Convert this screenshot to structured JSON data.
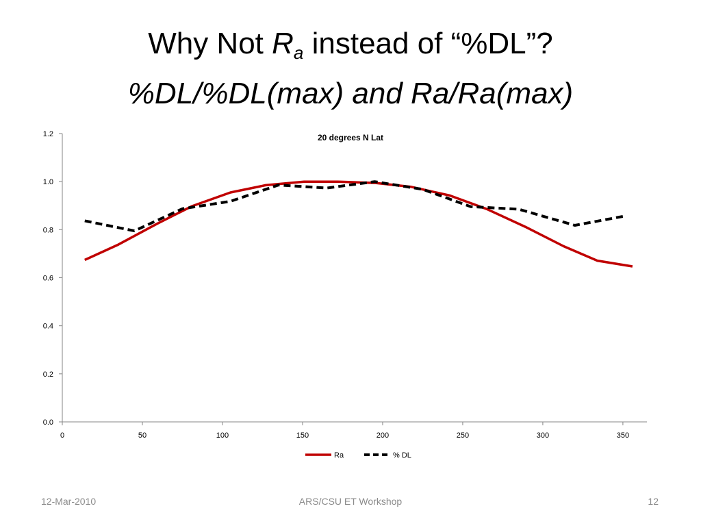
{
  "slide": {
    "title_part1": "Why Not ",
    "title_var": "R",
    "title_sub": "a",
    "title_part2": " instead of “%DL”?",
    "title_line2": "%DL/%DL(max) and Ra/Ra(max)"
  },
  "footer": {
    "date": "12-Mar-2010",
    "center": "ARS/CSU ET Workshop",
    "page": "12"
  },
  "chart_data": {
    "type": "line",
    "title": "20 degrees N Lat",
    "xlabel": "",
    "ylabel": "",
    "xlim": [
      0,
      365
    ],
    "ylim": [
      0,
      1.2
    ],
    "xticks": [
      0,
      50,
      100,
      150,
      200,
      250,
      300,
      350
    ],
    "yticks": [
      0.0,
      0.2,
      0.4,
      0.6,
      0.8,
      1.0,
      1.2
    ],
    "grid": false,
    "legend": "bottom",
    "series": [
      {
        "name": "Ra",
        "color": "#c00000",
        "style": "solid",
        "x": [
          14,
          35,
          59,
          81,
          105,
          127,
          151,
          172,
          196,
          218,
          242,
          265,
          289,
          313,
          334,
          356
        ],
        "y": [
          0.674,
          0.738,
          0.824,
          0.898,
          0.955,
          0.985,
          1.0,
          1.0,
          0.994,
          0.978,
          0.942,
          0.886,
          0.812,
          0.731,
          0.671,
          0.647
        ]
      },
      {
        "name": "% DL",
        "color": "#000000",
        "style": "dashed",
        "x": [
          14,
          45,
          75,
          105,
          135,
          165,
          195,
          225,
          255,
          285,
          320,
          350
        ],
        "y": [
          0.837,
          0.795,
          0.887,
          0.918,
          0.986,
          0.973,
          1.0,
          0.968,
          0.896,
          0.885,
          0.818,
          0.855
        ]
      }
    ]
  }
}
